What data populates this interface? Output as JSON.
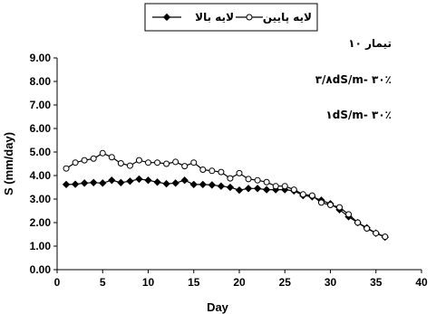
{
  "chart_data": {
    "type": "line",
    "title": "",
    "xlabel": "Day",
    "ylabel": "S (mm/day)",
    "xlim": [
      0,
      40
    ],
    "ylim": [
      0,
      9
    ],
    "xticks": [
      "0",
      "5",
      "10",
      "15",
      "20",
      "25",
      "30",
      "35",
      "40"
    ],
    "yticks": [
      "0.00",
      "1.00",
      "2.00",
      "3.00",
      "4.00",
      "5.00",
      "6.00",
      "7.00",
      "8.00",
      "9.00"
    ],
    "grid": false,
    "legend_position": "top-center",
    "series": [
      {
        "name": "لایه بالا",
        "marker": "diamond-filled",
        "color": "#000000",
        "x": [
          1,
          2,
          3,
          4,
          5,
          6,
          7,
          8,
          9,
          10,
          11,
          12,
          13,
          14,
          15,
          16,
          17,
          18,
          19,
          20,
          21,
          22,
          23,
          24,
          25,
          26,
          27,
          28,
          29,
          30,
          31,
          32,
          33,
          34,
          35,
          36
        ],
        "y": [
          3.62,
          3.63,
          3.68,
          3.7,
          3.68,
          3.8,
          3.7,
          3.76,
          3.85,
          3.8,
          3.72,
          3.65,
          3.68,
          3.8,
          3.62,
          3.62,
          3.6,
          3.55,
          3.5,
          3.38,
          3.45,
          3.45,
          3.4,
          3.4,
          3.4,
          3.35,
          3.15,
          3.1,
          2.95,
          2.8,
          2.55,
          2.25,
          2.0,
          1.78,
          1.55,
          1.38
        ]
      },
      {
        "name": "لایه پایین",
        "marker": "circle-open",
        "color": "#000000",
        "x": [
          1,
          2,
          3,
          4,
          5,
          6,
          7,
          8,
          9,
          10,
          11,
          12,
          13,
          14,
          15,
          16,
          17,
          18,
          19,
          20,
          21,
          22,
          23,
          24,
          25,
          26,
          27,
          28,
          29,
          30,
          31,
          32,
          33,
          34,
          35,
          36
        ],
        "y": [
          4.3,
          4.55,
          4.65,
          4.72,
          4.95,
          4.78,
          4.52,
          4.42,
          4.65,
          4.55,
          4.55,
          4.5,
          4.58,
          4.4,
          4.55,
          4.25,
          4.2,
          4.15,
          3.88,
          4.1,
          3.85,
          3.8,
          3.72,
          3.55,
          3.55,
          3.4,
          3.2,
          3.15,
          2.85,
          2.75,
          2.65,
          2.35,
          2.0,
          1.75,
          1.55,
          1.4
        ]
      }
    ],
    "annotations": [
      "تیمار ۱۰",
      "۳/۸dS/m- ۳۰٪",
      "۱dS/m- ۳۰٪"
    ]
  }
}
